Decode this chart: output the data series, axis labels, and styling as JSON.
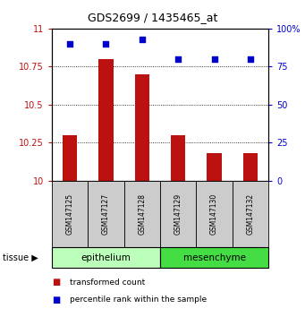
{
  "title": "GDS2699 / 1435465_at",
  "samples": [
    "GSM147125",
    "GSM147127",
    "GSM147128",
    "GSM147129",
    "GSM147130",
    "GSM147132"
  ],
  "bar_values": [
    10.3,
    10.8,
    10.7,
    10.3,
    10.18,
    10.18
  ],
  "scatter_values": [
    90,
    90,
    93,
    80,
    80,
    80
  ],
  "ylim_left": [
    10,
    11
  ],
  "ylim_right": [
    0,
    100
  ],
  "yticks_left": [
    10,
    10.25,
    10.5,
    10.75,
    11
  ],
  "yticks_right": [
    0,
    25,
    50,
    75,
    100
  ],
  "ytick_right_labels": [
    "0",
    "25",
    "50",
    "75",
    "100%"
  ],
  "bar_color": "#bb1111",
  "scatter_color": "#0000cc",
  "tissue_groups": [
    {
      "label": "epithelium",
      "indices": [
        0,
        1,
        2
      ],
      "color": "#bbffbb"
    },
    {
      "label": "mesenchyme",
      "indices": [
        3,
        4,
        5
      ],
      "color": "#44dd44"
    }
  ],
  "tissue_label": "tissue",
  "legend_bar_label": "transformed count",
  "legend_scatter_label": "percentile rank within the sample",
  "grid_color": "#000000",
  "sample_box_color": "#cccccc",
  "background_color": "#ffffff",
  "bar_width": 0.4,
  "scatter_size": 22
}
